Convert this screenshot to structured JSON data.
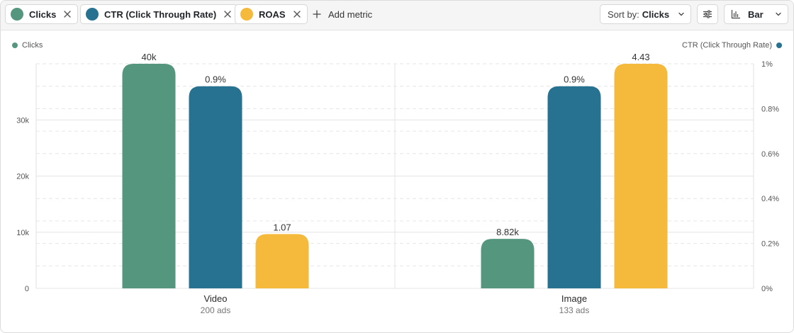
{
  "toolbar": {
    "chips": [
      {
        "label": "Clicks",
        "color": "#55967f"
      },
      {
        "label": "CTR (Click Through Rate)",
        "color": "#277191"
      },
      {
        "label": "ROAS",
        "color": "#f5ba3b"
      }
    ],
    "add_metric": "Add metric",
    "sort": {
      "prefix": "Sort by:",
      "value": "Clicks"
    },
    "view": {
      "value": "Bar"
    },
    "icons": {
      "close": "close-icon",
      "plus": "plus-icon",
      "adjust": "sliders-icon",
      "chart": "bar-chart-icon",
      "chevron": "chevron-down-icon"
    }
  },
  "legend": {
    "left": {
      "label": "Clicks",
      "color": "#55967f"
    },
    "right": {
      "label": "CTR (Click Through Rate)",
      "color": "#277191"
    }
  },
  "chart_data": {
    "type": "bar",
    "categories": [
      {
        "name": "Video",
        "sub": "200 ads"
      },
      {
        "name": "Image",
        "sub": "133 ads"
      }
    ],
    "series": [
      {
        "name": "Clicks",
        "color": "#55967f",
        "axis": "left",
        "values": [
          40000,
          8820
        ],
        "labels": [
          "40k",
          "8.82k"
        ]
      },
      {
        "name": "CTR (Click Through Rate)",
        "color": "#277191",
        "axis": "right",
        "values": [
          0.9,
          0.9
        ],
        "labels": [
          "0.9%",
          "0.9%"
        ]
      },
      {
        "name": "ROAS",
        "color": "#f5ba3b",
        "axis": "roas",
        "values": [
          1.07,
          4.43
        ],
        "labels": [
          "1.07",
          "4.43"
        ]
      }
    ],
    "left_axis": {
      "min": 0,
      "max": 40000,
      "ticks": [
        0,
        10000,
        20000,
        30000
      ],
      "tick_labels": [
        "0",
        "10k",
        "20k",
        "30k"
      ]
    },
    "right_axis": {
      "min": 0,
      "max": 1,
      "ticks": [
        0,
        0.2,
        0.4,
        0.6,
        0.8,
        1
      ],
      "tick_labels": [
        "0%",
        "0.2%",
        "0.4%",
        "0.6%",
        "0.8%",
        "1%"
      ]
    },
    "roas_axis": {
      "min": 0,
      "max": 4.43
    },
    "grid": true,
    "legend_placement": "top"
  }
}
